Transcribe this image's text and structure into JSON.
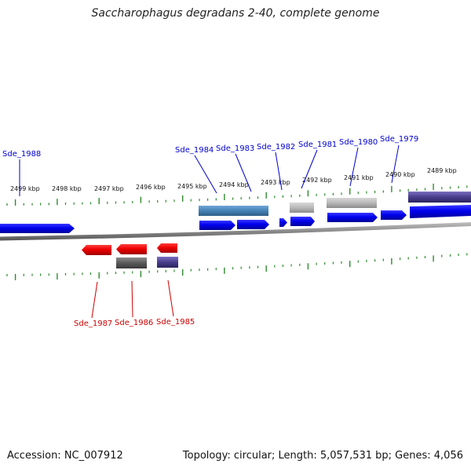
{
  "title": "Saccharophagus degradans 2-40, complete genome",
  "footer": {
    "accession": "Accession: NC_007912",
    "summary": "Topology: circular; Length: 5,057,531 bp; Genes: 4,056"
  },
  "colors": {
    "forward_gene": "#0000ee",
    "reverse_gene": "#ee0000",
    "forward_label": "#0000cc",
    "reverse_label": "#cc0000",
    "tick": "#2e8b2e",
    "backbone": "#888888"
  },
  "scale_labels": [
    "2499 kbp",
    "2498 kbp",
    "2497 kbp",
    "2496 kbp",
    "2495 kbp",
    "2494 kbp",
    "2493 kbp",
    "2492 kbp",
    "2491 kbp",
    "2490 kbp",
    "2489 kbp"
  ],
  "forward_genes": [
    "Sde_1988",
    "Sde_1984",
    "Sde_1983",
    "Sde_1982",
    "Sde_1981",
    "Sde_1980",
    "Sde_1979"
  ],
  "reverse_genes": [
    "Sde_1987",
    "Sde_1986",
    "Sde_1985"
  ]
}
